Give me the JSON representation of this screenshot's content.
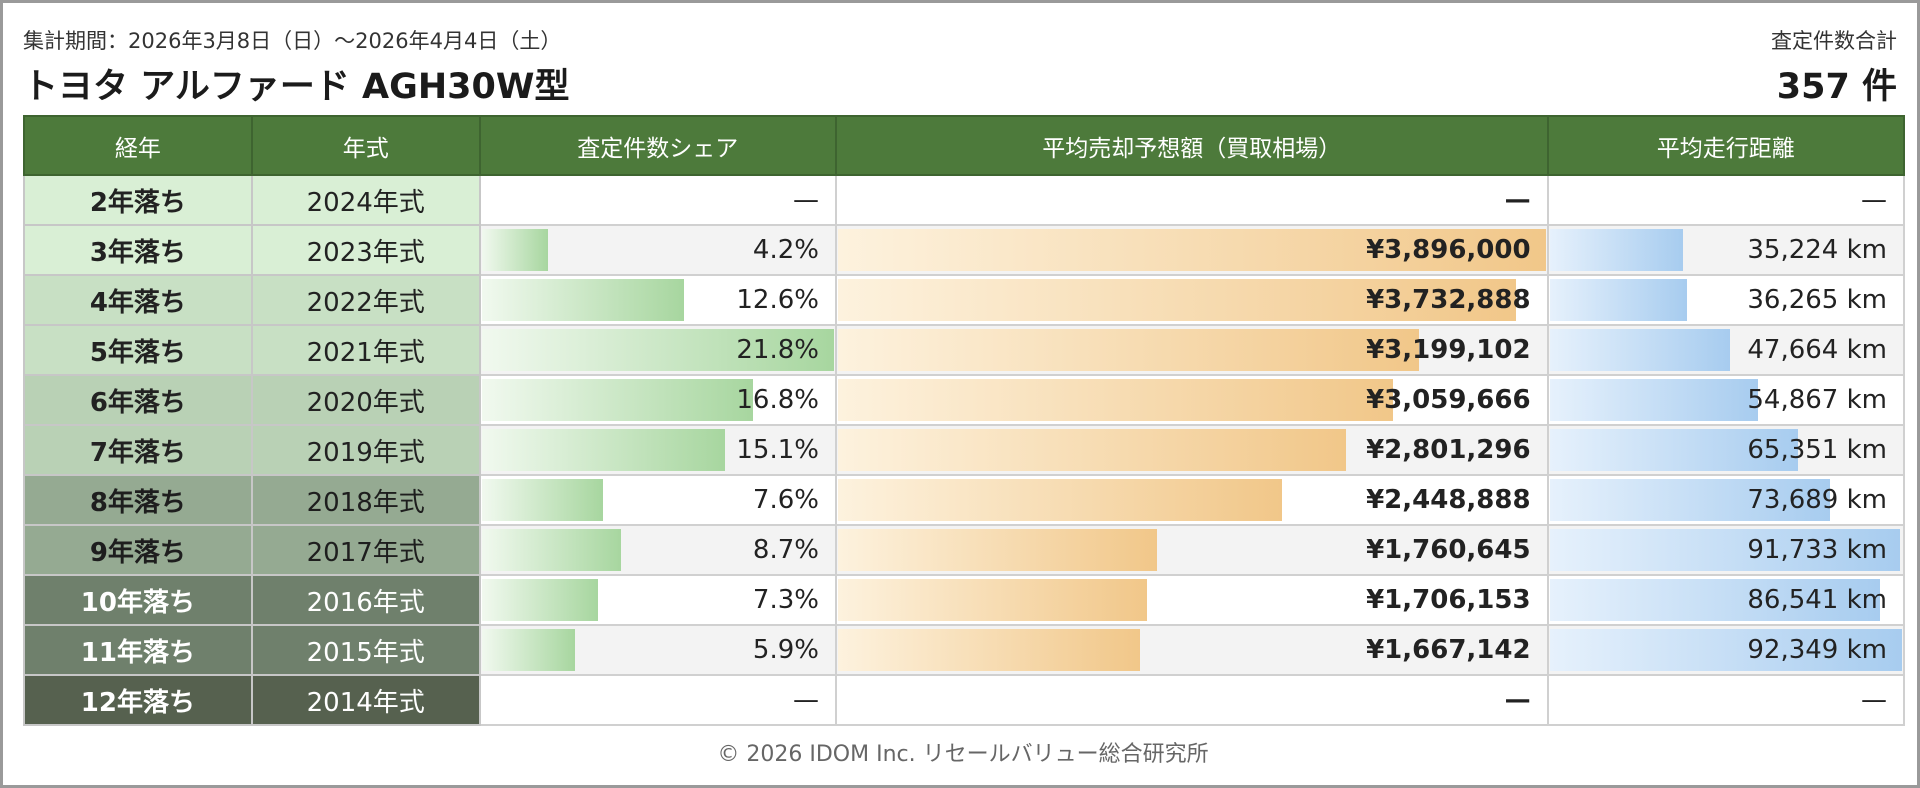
{
  "header": {
    "period": "集計期間：2026年3月8日（日）〜2026年4月4日（土）",
    "title": "トヨタ アルファード AGH30W型",
    "total_label": "査定件数合計",
    "total_value": "357 件"
  },
  "columns": [
    "経年",
    "年式",
    "査定件数シェア",
    "平均売却予想額（買取相場）",
    "平均走行距離"
  ],
  "rows": [
    {
      "age": "2年落ち",
      "year": "2024年式",
      "share": "—",
      "share_value": 0,
      "price": "—",
      "price_value": 0,
      "mileage": "—",
      "mileage_value": 0,
      "label_bg": "#d9efd5",
      "label_fg": "#222222"
    },
    {
      "age": "3年落ち",
      "year": "2023年式",
      "share": "4.2%",
      "share_value": 4.2,
      "price": "¥3,896,000",
      "price_value": 3896000,
      "mileage": "35,224 km",
      "mileage_value": 35224,
      "label_bg": "#d9efd5",
      "label_fg": "#222222"
    },
    {
      "age": "4年落ち",
      "year": "2022年式",
      "share": "12.6%",
      "share_value": 12.6,
      "price": "¥3,732,888",
      "price_value": 3732888,
      "mileage": "36,265 km",
      "mileage_value": 36265,
      "label_bg": "#c8e0c4",
      "label_fg": "#222222"
    },
    {
      "age": "5年落ち",
      "year": "2021年式",
      "share": "21.8%",
      "share_value": 21.8,
      "price": "¥3,199,102",
      "price_value": 3199102,
      "mileage": "47,664 km",
      "mileage_value": 47664,
      "label_bg": "#c8e0c4",
      "label_fg": "#222222"
    },
    {
      "age": "6年落ち",
      "year": "2020年式",
      "share": "16.8%",
      "share_value": 16.8,
      "price": "¥3,059,666",
      "price_value": 3059666,
      "mileage": "54,867 km",
      "mileage_value": 54867,
      "label_bg": "#b9d1b5",
      "label_fg": "#222222"
    },
    {
      "age": "7年落ち",
      "year": "2019年式",
      "share": "15.1%",
      "share_value": 15.1,
      "price": "¥2,801,296",
      "price_value": 2801296,
      "mileage": "65,351 km",
      "mileage_value": 65351,
      "label_bg": "#b9d1b5",
      "label_fg": "#222222"
    },
    {
      "age": "8年落ち",
      "year": "2018年式",
      "share": "7.6%",
      "share_value": 7.6,
      "price": "¥2,448,888",
      "price_value": 2448888,
      "mileage": "73,689 km",
      "mileage_value": 73689,
      "label_bg": "#95aa92",
      "label_fg": "#1e1e1e"
    },
    {
      "age": "9年落ち",
      "year": "2017年式",
      "share": "8.7%",
      "share_value": 8.7,
      "price": "¥1,760,645",
      "price_value": 1760645,
      "mileage": "91,733 km",
      "mileage_value": 91733,
      "label_bg": "#95aa92",
      "label_fg": "#1e1e1e"
    },
    {
      "age": "10年落ち",
      "year": "2016年式",
      "share": "7.3%",
      "share_value": 7.3,
      "price": "¥1,706,153",
      "price_value": 1706153,
      "mileage": "86,541 km",
      "mileage_value": 86541,
      "label_bg": "#6f806c",
      "label_fg": "#ffffff"
    },
    {
      "age": "11年落ち",
      "year": "2015年式",
      "share": "5.9%",
      "share_value": 5.9,
      "price": "¥1,667,142",
      "price_value": 1667142,
      "mileage": "92,349 km",
      "mileage_value": 92349,
      "label_bg": "#6f806c",
      "label_fg": "#ffffff"
    },
    {
      "age": "12年落ち",
      "year": "2014年式",
      "share": "—",
      "share_value": 0,
      "price": "—",
      "price_value": 0,
      "mileage": "—",
      "mileage_value": 0,
      "label_bg": "#56614f",
      "label_fg": "#ffffff"
    }
  ],
  "scales": {
    "share_max": 21.8,
    "price_max": 3896000,
    "mileage_max": 92349
  },
  "footer": "© 2026 IDOM Inc. リセールバリュー総合研究所"
}
